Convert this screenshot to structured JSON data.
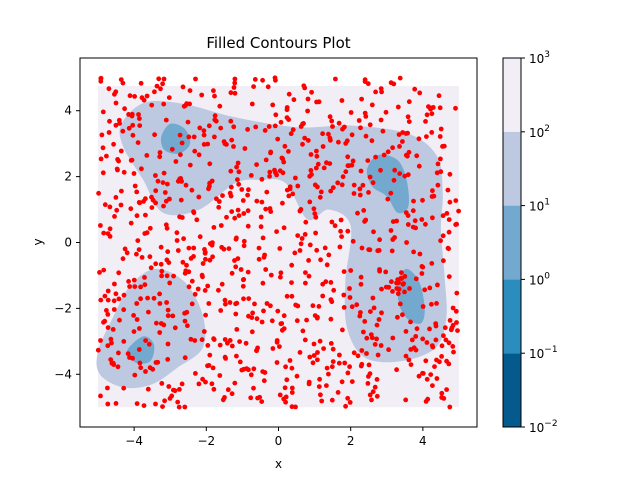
{
  "chart_data": {
    "type": "contour",
    "title": "Filled Contours Plot",
    "xlabel": "x",
    "ylabel": "y",
    "xlim": [
      -5.5,
      5.5
    ],
    "ylim": [
      -5.6,
      5.6
    ],
    "xticks": [
      -4,
      -2,
      0,
      2,
      4
    ],
    "yticks": [
      -4,
      -2,
      0,
      2,
      4
    ],
    "xtick_labels": [
      "−4",
      "−2",
      "0",
      "2",
      "4"
    ],
    "ytick_labels": [
      "−4",
      "−2",
      "0",
      "2",
      "4"
    ],
    "colorbar": {
      "scale": "log",
      "levels": [
        0.01,
        0.1,
        1,
        10,
        100,
        1000
      ],
      "tick_labels": [
        {
          "base": "10",
          "exp": "−2"
        },
        {
          "base": "10",
          "exp": "−1"
        },
        {
          "base": "10",
          "exp": "0"
        },
        {
          "base": "10",
          "exp": "1"
        },
        {
          "base": "10",
          "exp": "2"
        },
        {
          "base": "10",
          "exp": "3"
        }
      ],
      "colors": [
        "#045a8d",
        "#2b8cbe",
        "#74a9cf",
        "#bdc9e1",
        "#f1eef6"
      ]
    },
    "background_band_color": "#f1eef6",
    "regions": [
      {
        "name": "upper-band",
        "level_color": "#bdc9e1",
        "outline": [
          [
            -4.35,
            3.6
          ],
          [
            -3.7,
            4.25
          ],
          [
            -2.6,
            4.2
          ],
          [
            -1.2,
            3.8
          ],
          [
            0.5,
            3.5
          ],
          [
            2.0,
            3.55
          ],
          [
            3.6,
            3.3
          ],
          [
            4.4,
            2.6
          ],
          [
            4.55,
            1.5
          ],
          [
            4.5,
            0.4
          ],
          [
            4.6,
            -1.0
          ],
          [
            4.65,
            -2.3
          ],
          [
            4.35,
            -3.2
          ],
          [
            3.4,
            -3.6
          ],
          [
            2.4,
            -3.5
          ],
          [
            1.9,
            -2.6
          ],
          [
            1.85,
            -1.2
          ],
          [
            2.0,
            0.5
          ],
          [
            1.4,
            1.0
          ],
          [
            0.8,
            0.7
          ],
          [
            0.2,
            1.8
          ],
          [
            -0.5,
            1.9
          ],
          [
            -1.2,
            1.8
          ],
          [
            -2.2,
            1.0
          ],
          [
            -3.2,
            0.9
          ],
          [
            -3.75,
            1.9
          ],
          [
            -4.3,
            2.9
          ]
        ]
      },
      {
        "name": "lower-left-blob",
        "level_color": "#bdc9e1",
        "outline": [
          [
            -4.6,
            -2.3
          ],
          [
            -4.1,
            -1.3
          ],
          [
            -3.4,
            -0.8
          ],
          [
            -2.6,
            -1.2
          ],
          [
            -2.1,
            -2.2
          ],
          [
            -2.1,
            -3.2
          ],
          [
            -2.8,
            -3.8
          ],
          [
            -3.5,
            -4.3
          ],
          [
            -4.3,
            -4.4
          ],
          [
            -4.95,
            -4.0
          ],
          [
            -5.0,
            -3.3
          ]
        ]
      },
      {
        "name": "hotspot-upper-left",
        "level_color": "#74a9cf",
        "outline": [
          [
            -3.25,
            3.2
          ],
          [
            -3.0,
            3.6
          ],
          [
            -2.6,
            3.45
          ],
          [
            -2.45,
            3.0
          ],
          [
            -2.75,
            2.7
          ],
          [
            -3.15,
            2.8
          ]
        ]
      },
      {
        "name": "hotspot-upper-right",
        "level_color": "#74a9cf",
        "outline": [
          [
            2.45,
            2.2
          ],
          [
            2.75,
            2.65
          ],
          [
            3.3,
            2.5
          ],
          [
            3.55,
            1.9
          ],
          [
            3.6,
            1.1
          ],
          [
            3.3,
            0.9
          ],
          [
            3.0,
            1.4
          ],
          [
            2.6,
            1.7
          ]
        ]
      },
      {
        "name": "hotspot-right",
        "level_color": "#74a9cf",
        "outline": [
          [
            3.3,
            -1.2
          ],
          [
            3.55,
            -0.8
          ],
          [
            3.9,
            -1.2
          ],
          [
            4.05,
            -2.0
          ],
          [
            3.95,
            -2.45
          ],
          [
            3.6,
            -2.35
          ],
          [
            3.35,
            -1.9
          ]
        ]
      },
      {
        "name": "hotspot-lower-left",
        "level_color": "#74a9cf",
        "outline": [
          [
            -4.2,
            -3.3
          ],
          [
            -3.75,
            -2.85
          ],
          [
            -3.45,
            -3.1
          ],
          [
            -3.55,
            -3.6
          ],
          [
            -3.95,
            -3.65
          ]
        ]
      }
    ],
    "scatter_color": "#ff0000",
    "scatter_count": 960,
    "scatter_seed": 7
  }
}
